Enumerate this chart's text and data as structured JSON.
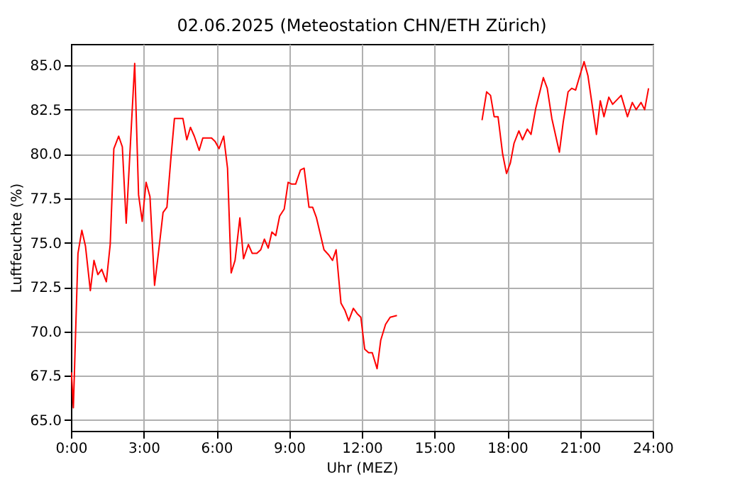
{
  "chart_data": {
    "type": "line",
    "title": "02.06.2025  (Meteostation CHN/ETH Zürich)",
    "xlabel": "Uhr (MEZ)",
    "ylabel": "Luftfeuchte (%)",
    "x": [
      0.02,
      0.1,
      0.29,
      0.45,
      0.6,
      0.8,
      0.95,
      1.11,
      1.27,
      1.46,
      1.62,
      1.77,
      1.97,
      2.12,
      2.28,
      2.63,
      2.79,
      2.94,
      3.1,
      3.26,
      3.45,
      3.65,
      3.8,
      3.96,
      4.12,
      4.27,
      4.62,
      4.78,
      4.93,
      5.09,
      5.29,
      5.44,
      5.8,
      5.95,
      6.11,
      6.3,
      6.46,
      6.61,
      6.77,
      6.97,
      7.12,
      7.32,
      7.48,
      7.67,
      7.83,
      7.98,
      8.14,
      8.29,
      8.45,
      8.61,
      8.8,
      8.96,
      9.11,
      9.27,
      9.47,
      9.62,
      9.82,
      9.97,
      10.13,
      10.44,
      10.64,
      10.79,
      10.94,
      11.14,
      11.3,
      11.46,
      11.65,
      11.81,
      11.96,
      12.12,
      12.28,
      12.43,
      12.63,
      12.78,
      12.98,
      13.17,
      13.45,
      15.2,
      16.96,
      17.15,
      17.31,
      17.46,
      17.62,
      17.81,
      17.97,
      18.13,
      18.28,
      18.48,
      18.63,
      18.83,
      18.98,
      19.18,
      19.49,
      19.65,
      19.84,
      20.15,
      20.31,
      20.51,
      20.66,
      20.82,
      20.97,
      21.17,
      21.33,
      21.68,
      21.84,
      21.99,
      22.19,
      22.35,
      22.7,
      22.96,
      23.16,
      23.32,
      23.52,
      23.67,
      23.83
    ],
    "series": [
      {
        "color": "#ff0000",
        "values": [
          67.7,
          65.7,
          74.4,
          75.7,
          74.8,
          72.3,
          74.0,
          73.2,
          73.5,
          72.8,
          74.9,
          80.3,
          81.0,
          80.4,
          76.1,
          85.1,
          77.7,
          76.2,
          78.4,
          77.6,
          72.6,
          74.9,
          76.7,
          77.0,
          79.7,
          82.0,
          82.0,
          80.8,
          81.5,
          81.0,
          80.2,
          80.9,
          80.9,
          80.7,
          80.3,
          81.0,
          79.2,
          73.3,
          74.0,
          76.4,
          74.1,
          74.9,
          74.4,
          74.4,
          74.6,
          75.2,
          74.7,
          75.6,
          75.4,
          76.5,
          76.9,
          78.4,
          78.3,
          78.3,
          79.1,
          79.2,
          77.0,
          77.0,
          76.4,
          74.6,
          74.3,
          74.0,
          74.6,
          71.6,
          71.2,
          70.6,
          71.3,
          71.0,
          70.8,
          69.0,
          68.8,
          68.8,
          67.9,
          69.5,
          70.4,
          70.8,
          70.9,
          null,
          81.9,
          83.5,
          83.3,
          82.1,
          82.1,
          80.0,
          78.9,
          79.5,
          80.6,
          81.3,
          80.8,
          81.4,
          81.1,
          82.6,
          84.3,
          83.7,
          82.0,
          80.1,
          81.8,
          83.5,
          83.7,
          83.6,
          84.3,
          85.2,
          84.4,
          81.1,
          83.0,
          82.1,
          83.2,
          82.8,
          83.3,
          82.1,
          82.9,
          82.5,
          82.9,
          82.5,
          83.7
        ]
      }
    ],
    "xlim": [
      0,
      24
    ],
    "xticks": [
      {
        "value": 0,
        "label": "0:00"
      },
      {
        "value": 3,
        "label": "3:00"
      },
      {
        "value": 6,
        "label": "6:00"
      },
      {
        "value": 9,
        "label": "9:00"
      },
      {
        "value": 12,
        "label": "12:00"
      },
      {
        "value": 15,
        "label": "15:00"
      },
      {
        "value": 18,
        "label": "18:00"
      },
      {
        "value": 21,
        "label": "21:00"
      },
      {
        "value": 24,
        "label": "24:00"
      }
    ],
    "ylim": [
      64.4,
      86.2
    ],
    "yticks": [
      {
        "value": 65,
        "label": "65.0"
      },
      {
        "value": 67.5,
        "label": "67.5"
      },
      {
        "value": 70,
        "label": "70.0"
      },
      {
        "value": 72.5,
        "label": "72.5"
      },
      {
        "value": 75,
        "label": "75.0"
      },
      {
        "value": 77.5,
        "label": "77.5"
      },
      {
        "value": 80,
        "label": "80.0"
      },
      {
        "value": 82.5,
        "label": "82.5"
      },
      {
        "value": 85,
        "label": "85.0"
      }
    ],
    "grid": true,
    "marker": "none",
    "line_style": "solid"
  }
}
